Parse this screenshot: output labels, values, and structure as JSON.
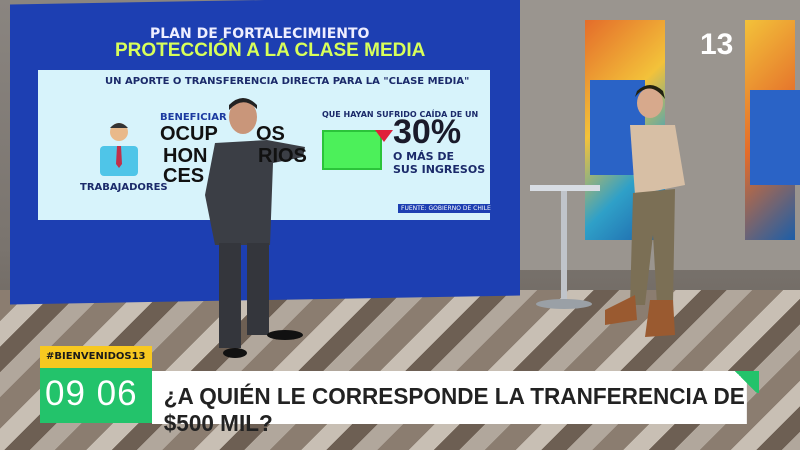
{
  "broadcast": {
    "channel_logo": "13",
    "hashtag": "#BIENVENIDOS13",
    "clock": "09 06",
    "headline": "¿A QUIÉN LE CORRESPONDE LA TRANFERENCIA DE $500 MIL?",
    "accent_green": "#23c36b",
    "accent_yellow": "#f7c820"
  },
  "screen": {
    "title_line1": "PLAN DE FORTALECIMIENTO",
    "title_line2": "PROTECCIÓN A LA CLASE MEDIA",
    "subtitle": "UN APORTE O TRANSFERENCIA DIRECTA PARA LA \"CLASE MEDIA\"",
    "worker_label": "TRABAJADORES",
    "beneficiaries_fragment": "BENEFICIAR",
    "line1_fragments": [
      "OCUP",
      "OS"
    ],
    "line2_fragments": [
      "HON",
      "RIOS"
    ],
    "line3_fragment": "CES",
    "condition": "QUE HAYAN SUFRIDO CAÍDA DE UN",
    "percentage": "30%",
    "percentage_note_1": "O MÁS DE",
    "percentage_note_2": "SUS INGRESOS",
    "source": "FUENTE: GOBIERNO DE CHILE"
  }
}
